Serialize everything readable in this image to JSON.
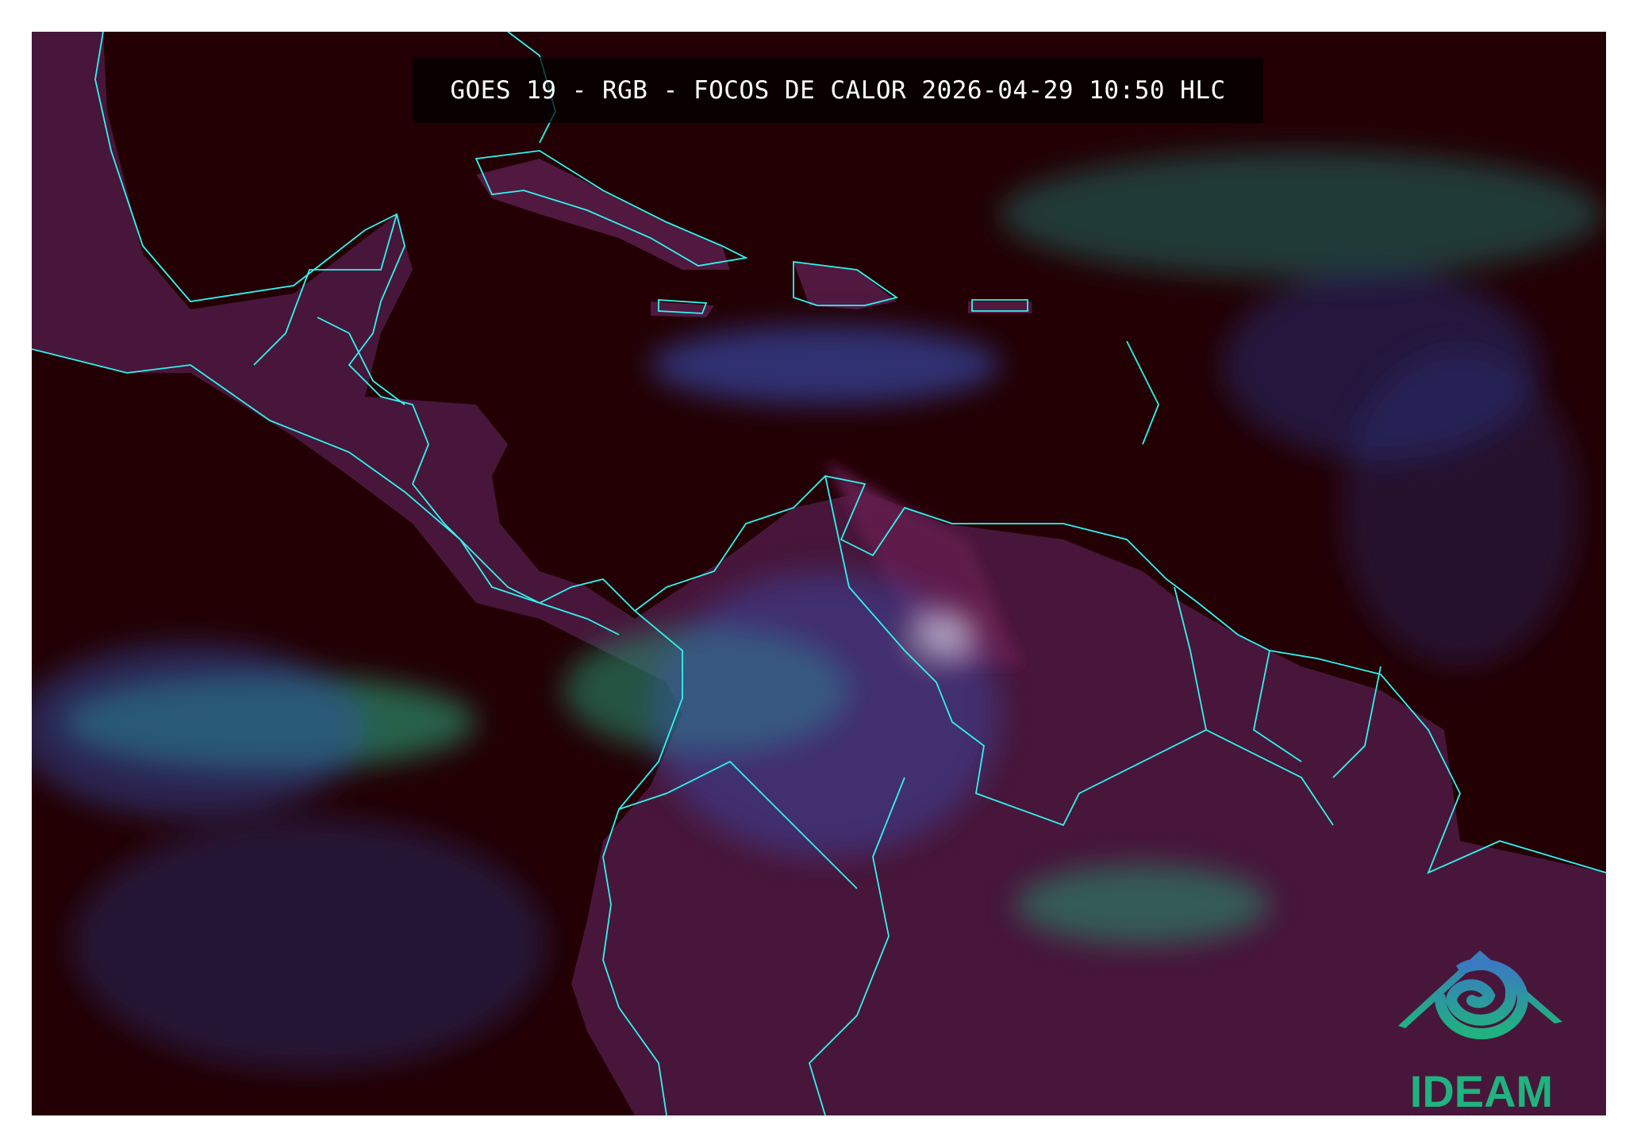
{
  "map": {
    "title": "GOES 19 - RGB - FOCOS DE CALOR 2026-04-29 10:50 HLC",
    "colors": {
      "background": "#230004",
      "borders": "#2ff5f0",
      "land": "#5a1e4a",
      "cloud_low": "#3a5ad0",
      "cloud_high": "#1f8a6a"
    }
  },
  "logo": {
    "text": "IDEAM",
    "icon": "ideam-house-spiral-icon",
    "color": "#1fb37f"
  }
}
